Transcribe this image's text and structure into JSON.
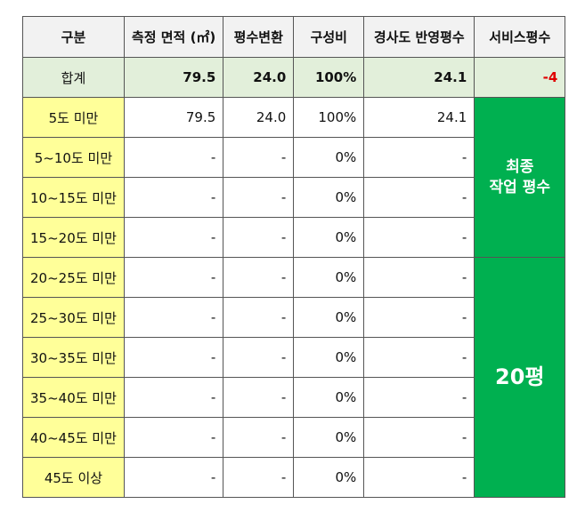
{
  "headers": {
    "category": "구분",
    "area": "측정 면적 (㎡)",
    "pyeong": "평수변환",
    "ratio": "구성비",
    "slope_pyeong": "경사도 반영평수",
    "service": "서비스평수"
  },
  "total": {
    "label": "합계",
    "area": "79.5",
    "pyeong": "24.0",
    "ratio": "100%",
    "slope_pyeong": "24.1",
    "service": "-4"
  },
  "rows": [
    {
      "label": "5도 미만",
      "area": "79.5",
      "pyeong": "24.0",
      "ratio": "100%",
      "slope_pyeong": "24.1"
    },
    {
      "label": "5~10도 미만",
      "area": "-",
      "pyeong": "-",
      "ratio": "0%",
      "slope_pyeong": "-"
    },
    {
      "label": "10~15도 미만",
      "area": "-",
      "pyeong": "-",
      "ratio": "0%",
      "slope_pyeong": "-"
    },
    {
      "label": "15~20도 미만",
      "area": "-",
      "pyeong": "-",
      "ratio": "0%",
      "slope_pyeong": "-"
    },
    {
      "label": "20~25도 미만",
      "area": "-",
      "pyeong": "-",
      "ratio": "0%",
      "slope_pyeong": "-"
    },
    {
      "label": "25~30도 미만",
      "area": "-",
      "pyeong": "-",
      "ratio": "0%",
      "slope_pyeong": "-"
    },
    {
      "label": "30~35도 미만",
      "area": "-",
      "pyeong": "-",
      "ratio": "0%",
      "slope_pyeong": "-"
    },
    {
      "label": "35~40도 미만",
      "area": "-",
      "pyeong": "-",
      "ratio": "0%",
      "slope_pyeong": "-"
    },
    {
      "label": "40~45도 미만",
      "area": "-",
      "pyeong": "-",
      "ratio": "0%",
      "slope_pyeong": "-"
    },
    {
      "label": "45도 이상",
      "area": "-",
      "pyeong": "-",
      "ratio": "0%",
      "slope_pyeong": "-"
    }
  ],
  "final": {
    "label": "최종\n작업 평수",
    "value": "20평"
  },
  "colors": {
    "header_bg": "#f2f2f2",
    "total_bg": "#e2efda",
    "category_bg": "#ffff99",
    "final_bg": "#00b050",
    "negative": "#e00000"
  }
}
